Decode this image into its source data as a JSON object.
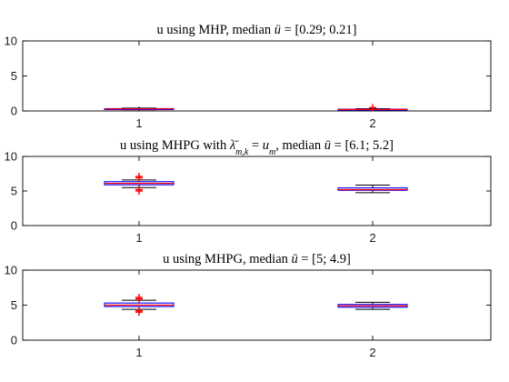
{
  "chart_data": [
    {
      "type": "boxplot",
      "title_parts": [
        {
          "t": "u using MHP, median "
        },
        {
          "t": "ū",
          "italic": true
        },
        {
          "t": " = [0.29; 0.21]"
        }
      ],
      "categories": [
        "1",
        "2"
      ],
      "ylim": [
        0,
        10
      ],
      "yticks": [
        0,
        5,
        10
      ],
      "boxes": [
        {
          "category": "1",
          "q1": 0.25,
          "median": 0.29,
          "q3": 0.33,
          "whisker_low": 0.18,
          "whisker_high": 0.4,
          "outliers": []
        },
        {
          "category": "2",
          "q1": 0.17,
          "median": 0.21,
          "q3": 0.25,
          "whisker_low": 0.1,
          "whisker_high": 0.32,
          "outliers": [
            0.48
          ]
        }
      ]
    },
    {
      "type": "boxplot",
      "title_parts": [
        {
          "t": "u using MHPG with "
        },
        {
          "t": "λ̄",
          "italic": true
        },
        {
          "t": "m,k",
          "italic": true,
          "sub": true
        },
        {
          "t": " = "
        },
        {
          "t": "u",
          "italic": true
        },
        {
          "t": "m",
          "italic": true,
          "sub": true
        },
        {
          "t": ", median "
        },
        {
          "t": "ū",
          "italic": true
        },
        {
          "t": " = [6.1; 5.2]"
        }
      ],
      "categories": [
        "1",
        "2"
      ],
      "ylim": [
        0,
        10
      ],
      "yticks": [
        0,
        5,
        10
      ],
      "boxes": [
        {
          "category": "1",
          "q1": 5.9,
          "median": 6.1,
          "q3": 6.35,
          "whisker_low": 5.5,
          "whisker_high": 6.6,
          "outliers": [
            6.9,
            7.1,
            5.0,
            5.2
          ]
        },
        {
          "category": "2",
          "q1": 5.1,
          "median": 5.2,
          "q3": 5.45,
          "whisker_low": 4.75,
          "whisker_high": 5.85,
          "outliers": []
        }
      ]
    },
    {
      "type": "boxplot",
      "title_parts": [
        {
          "t": "u using MHPG, median "
        },
        {
          "t": "ū",
          "italic": true
        },
        {
          "t": " = [5; 4.9]"
        }
      ],
      "categories": [
        "1",
        "2"
      ],
      "ylim": [
        0,
        10
      ],
      "yticks": [
        0,
        5,
        10
      ],
      "boxes": [
        {
          "category": "1",
          "q1": 4.8,
          "median": 5.0,
          "q3": 5.3,
          "whisker_low": 4.4,
          "whisker_high": 5.7,
          "outliers": [
            5.9,
            6.1,
            4.0,
            4.2
          ]
        },
        {
          "category": "2",
          "q1": 4.7,
          "median": 4.9,
          "q3": 5.1,
          "whisker_low": 4.4,
          "whisker_high": 5.4,
          "outliers": []
        }
      ]
    }
  ],
  "colors": {
    "box_edge": "#0000ff",
    "median": "#ff0000",
    "whisker": "#000000",
    "outlier": "#ff0000",
    "axes": "#000000",
    "text": "#000000"
  }
}
